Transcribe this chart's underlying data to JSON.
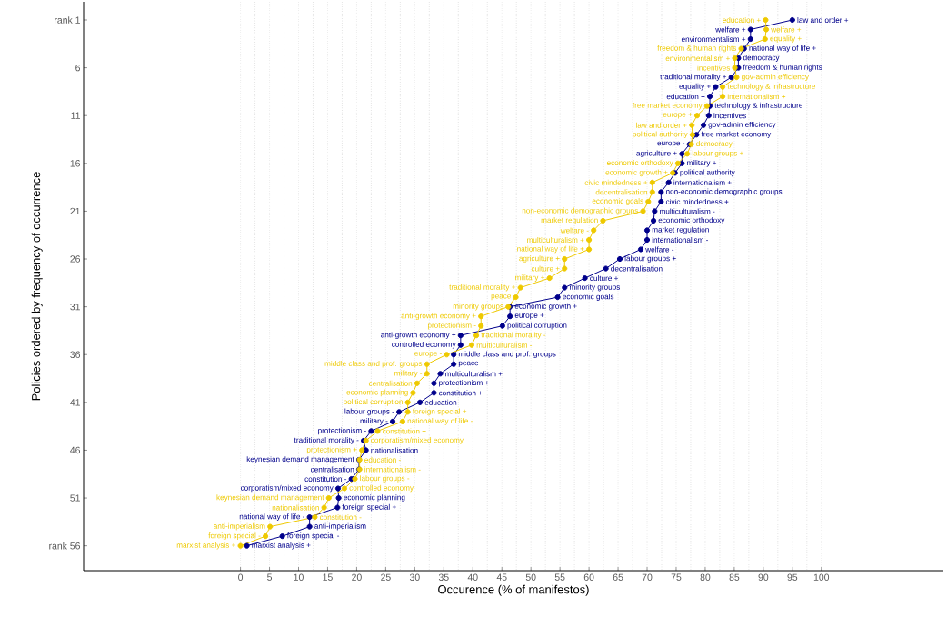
{
  "chart_data": {
    "type": "line",
    "xlabel": "Occurence (% of manifestos)",
    "ylabel": "Policies ordered by frequency of occurrence",
    "xlim": [
      -27,
      121
    ],
    "ylim": [
      58.6,
      -0.9
    ],
    "xticks": [
      0,
      5,
      10,
      15,
      20,
      25,
      30,
      35,
      40,
      45,
      50,
      55,
      60,
      65,
      70,
      75,
      80,
      85,
      90,
      95,
      100
    ],
    "yticks": [
      {
        "value": 1,
        "label": "rank 1"
      },
      6,
      11,
      16,
      21,
      26,
      31,
      36,
      41,
      46,
      51,
      {
        "value": 56,
        "label": "rank 56"
      }
    ],
    "grid": "x",
    "marker": "circle",
    "line_style": "solid",
    "series": [
      {
        "color": "#00008b",
        "x": [
          95.0,
          87.8,
          87.8,
          86.7,
          85.7,
          85.7,
          84.5,
          81.8,
          80.8,
          80.8,
          80.6,
          79.7,
          78.5,
          77.3,
          76.0,
          76.0,
          74.8,
          73.7,
          72.4,
          72.4,
          71.3,
          71.1,
          70.0,
          70.0,
          68.9,
          65.3,
          62.9,
          59.3,
          55.8,
          54.6,
          46.4,
          46.4,
          45.1,
          37.9,
          37.9,
          36.7,
          36.7,
          34.4,
          33.3,
          33.3,
          30.9,
          27.3,
          26.2,
          22.5,
          21.2,
          21.6,
          20.4,
          20.4,
          19.1,
          16.8,
          16.9,
          16.7,
          11.9,
          11.9,
          7.2,
          1.1
        ],
        "values": [
          1,
          2,
          3,
          4,
          5,
          6,
          7,
          8,
          9,
          10,
          11,
          12,
          13,
          14,
          15,
          16,
          17,
          18,
          19,
          20,
          21,
          22,
          23,
          24,
          25,
          26,
          27,
          28,
          29,
          30,
          31,
          32,
          33,
          34,
          35,
          36,
          37,
          38,
          39,
          40,
          41,
          42,
          43,
          44,
          45,
          46,
          47,
          48,
          49,
          50,
          51,
          52,
          53,
          54,
          55,
          56
        ],
        "value_labels": [
          "law and order +",
          "welfare +",
          "environmentalism +",
          "national way of life +",
          "democracy",
          "freedom & human rights",
          "traditional morality +",
          "equality +",
          "education +",
          "technology & infrastructure",
          "incentives",
          "gov-admin efficiency",
          "free market economy",
          "europe -",
          "agriculture +",
          "military +",
          "political authority",
          "internationalism +",
          "non-economic demographic groups",
          "civic mindedness +",
          "multiculturalism -",
          "economic orthodoxy",
          "market regulation",
          "internationalism -",
          "welfare -",
          "labour groups +",
          "decentralisation",
          "culture +",
          "minority groups",
          "economic goals",
          "economic growth +",
          "europe +",
          "political corruption",
          "anti-growth economy +",
          "controlled economy",
          "middle class and prof. groups",
          "peace",
          "multiculturalism +",
          "protectionism +",
          "constitution +",
          "education -",
          "labour groups -",
          "military -",
          "protectionism -",
          "traditional morality -",
          "nationalisation",
          "keynesian demand management",
          "centralisation",
          "constitution -",
          "corporatism/mixed economy",
          "economic planning",
          "foreign special +",
          "national way of life -",
          "anti-imperialism",
          "foreign special -",
          "marxist analysis +"
        ]
      },
      {
        "color": "#eec900",
        "x": [
          90.4,
          90.5,
          90.3,
          86.2,
          85.1,
          85.1,
          85.4,
          83.0,
          83.0,
          80.3,
          78.6,
          77.7,
          77.8,
          77.6,
          76.9,
          75.3,
          74.4,
          70.9,
          70.9,
          70.2,
          69.3,
          62.4,
          60.8,
          60.0,
          60.0,
          55.8,
          55.8,
          53.2,
          48.2,
          47.4,
          46.1,
          41.4,
          41.4,
          40.6,
          39.8,
          35.5,
          32.1,
          32.1,
          30.4,
          29.7,
          28.8,
          28.8,
          27.9,
          23.6,
          21.6,
          20.9,
          20.5,
          20.5,
          19.7,
          17.9,
          15.2,
          14.4,
          12.8,
          5.1,
          4.3,
          0.0
        ],
        "values": [
          1,
          2,
          3,
          4,
          5,
          6,
          7,
          8,
          9,
          10,
          11,
          12,
          13,
          14,
          15,
          16,
          17,
          18,
          19,
          20,
          21,
          22,
          23,
          24,
          25,
          26,
          27,
          28,
          29,
          30,
          31,
          32,
          33,
          34,
          35,
          36,
          37,
          38,
          39,
          40,
          41,
          42,
          43,
          44,
          45,
          46,
          47,
          48,
          49,
          50,
          51,
          52,
          53,
          54,
          55,
          56
        ],
        "value_labels": [
          "education +",
          "welfare +",
          "equality +",
          "freedom & human rights",
          "environmentalism +",
          "incentives",
          "gov-admin efficiency",
          "technology & infrastructure",
          "internationalism +",
          "free market economy",
          "europe +",
          "law and order +",
          "political authority",
          "democracy",
          "labour groups +",
          "economic orthodoxy",
          "economic growth +",
          "civic mindedness +",
          "decentralisation",
          "economic goals",
          "non-economic demographic groups",
          "market regulation",
          "welfare -",
          "multiculturalism +",
          "national way of life +",
          "agriculture +",
          "culture +",
          "military +",
          "traditional morality +",
          "peace",
          "minority groups",
          "anti-growth economy +",
          "protectionism -",
          "traditional morality -",
          "multiculturalism -",
          "europe -",
          "middle class and prof. groups",
          "military -",
          "centralisation",
          "economic planning",
          "political corruption",
          "foreign special +",
          "national way of life -",
          "constitution +",
          "corporatism/mixed economy",
          "protectionism +",
          "education -",
          "internationalism -",
          "labour groups -",
          "controlled economy",
          "keynesian demand management",
          "nationalisation",
          "constitution -",
          "anti-imperialism",
          "foreign special -",
          "marxist analysis +"
        ]
      }
    ]
  }
}
